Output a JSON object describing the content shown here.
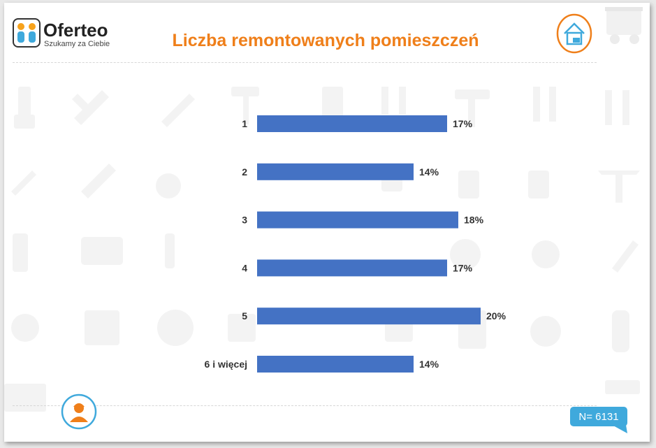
{
  "brand": {
    "name": "Oferteo",
    "tagline": "Szukamy za Ciebie"
  },
  "badge": {
    "sample": "N= 6131"
  },
  "colors": {
    "bar": "#4472c4",
    "title": "#ef7f1a",
    "accent": "#3fa9dc",
    "badge": "#3fa9dc"
  },
  "icons": [
    "oferteo-logo-icon",
    "house-icon",
    "truck-icon",
    "worker-icon",
    "tools-background-icon"
  ],
  "chart_data": {
    "type": "bar",
    "orientation": "horizontal",
    "title": "Liczba remontowanych pomieszczeń",
    "categories": [
      "1",
      "2",
      "3",
      "4",
      "5",
      "6 i więcej"
    ],
    "values": [
      17,
      14,
      18,
      17,
      20,
      14
    ],
    "value_suffix": "%",
    "xlim": [
      0,
      20
    ],
    "grid": false,
    "legend": "none"
  }
}
